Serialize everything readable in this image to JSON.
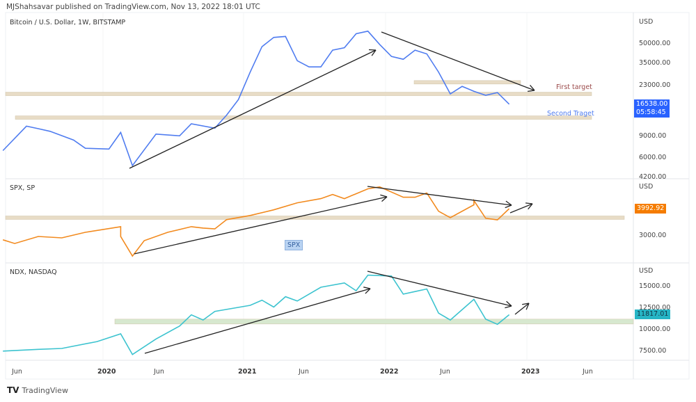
{
  "header": "MJShahsavar published on TradingView.com, Nov 13, 2022 18:01 UTC",
  "footer": "TradingView",
  "colors": {
    "btc": "#4f7cf0",
    "spx": "#f28a1e",
    "ndx": "#3cc3cf",
    "zone": "#e8dcc6",
    "zone_green": "#d7e8cf"
  },
  "chart_data": [
    {
      "type": "line",
      "title": "Bitcoin / U.S. Dollar, 1W, BITSTAMP",
      "unit": "USD",
      "scale": "log",
      "yticks": [
        50000,
        35000,
        23000,
        9000,
        6000,
        4200
      ],
      "last_value": "16538.00",
      "countdown": "05:58:45",
      "annotations": [
        {
          "text": "First target",
          "color": "#9b4a4a"
        },
        {
          "text": "Second Traget",
          "color": "#4f7cf0"
        }
      ],
      "zones": [
        20000,
        12900,
        24800
      ],
      "series": [
        [
          "2019-04",
          7000
        ],
        [
          "2019-06",
          11000
        ],
        [
          "2019-07",
          10500
        ],
        [
          "2019-08",
          10000
        ],
        [
          "2019-10",
          8500
        ],
        [
          "2019-11",
          7300
        ],
        [
          "2020-01",
          7200
        ],
        [
          "2020-02",
          9800
        ],
        [
          "2020-03",
          5300
        ],
        [
          "2020-05",
          9500
        ],
        [
          "2020-07",
          9200
        ],
        [
          "2020-08",
          11500
        ],
        [
          "2020-10",
          10600
        ],
        [
          "2020-11",
          13500
        ],
        [
          "2020-12",
          18000
        ],
        [
          "2021-01",
          30000
        ],
        [
          "2021-02",
          48000
        ],
        [
          "2021-03",
          57000
        ],
        [
          "2021-04",
          58000
        ],
        [
          "2021-05",
          37000
        ],
        [
          "2021-06",
          33000
        ],
        [
          "2021-07",
          33000
        ],
        [
          "2021-08",
          45000
        ],
        [
          "2021-09",
          47000
        ],
        [
          "2021-10",
          61000
        ],
        [
          "2021-11",
          64000
        ],
        [
          "2021-12",
          50000
        ],
        [
          "2022-01",
          40000
        ],
        [
          "2022-02",
          38000
        ],
        [
          "2022-03",
          45000
        ],
        [
          "2022-04",
          42000
        ],
        [
          "2022-05",
          30000
        ],
        [
          "2022-06",
          20000
        ],
        [
          "2022-07",
          23000
        ],
        [
          "2022-08",
          21000
        ],
        [
          "2022-09",
          19500
        ],
        [
          "2022-10",
          20500
        ],
        [
          "2022-11",
          16538
        ]
      ]
    },
    {
      "type": "line",
      "title": "SPX, SP",
      "unit": "USD",
      "scale": "linear",
      "yticks": [
        3000
      ],
      "last_value": "3992.92",
      "badge": "SPX",
      "zones": [
        3670
      ],
      "series": [
        [
          "2019-04",
          2880
        ],
        [
          "2019-05",
          2750
        ],
        [
          "2019-07",
          3000
        ],
        [
          "2019-09",
          2950
        ],
        [
          "2019-11",
          3150
        ],
        [
          "2020-02",
          3350
        ],
        [
          "2020-02",
          3000
        ],
        [
          "2020-03",
          2300
        ],
        [
          "2020-04",
          2850
        ],
        [
          "2020-06",
          3150
        ],
        [
          "2020-08",
          3350
        ],
        [
          "2020-09",
          3300
        ],
        [
          "2020-10",
          3270
        ],
        [
          "2020-11",
          3600
        ],
        [
          "2021-01",
          3750
        ],
        [
          "2021-03",
          3950
        ],
        [
          "2021-05",
          4200
        ],
        [
          "2021-07",
          4350
        ],
        [
          "2021-08",
          4500
        ],
        [
          "2021-09",
          4350
        ],
        [
          "2021-11",
          4700
        ],
        [
          "2021-12",
          4770
        ],
        [
          "2022-02",
          4400
        ],
        [
          "2022-03",
          4400
        ],
        [
          "2022-04",
          4550
        ],
        [
          "2022-05",
          3900
        ],
        [
          "2022-06",
          3670
        ],
        [
          "2022-08",
          4130
        ],
        [
          "2022-08",
          4280
        ],
        [
          "2022-09",
          3650
        ],
        [
          "2022-10",
          3590
        ],
        [
          "2022-11",
          3993
        ]
      ]
    },
    {
      "type": "line",
      "title": "NDX, NASDAQ",
      "unit": "USD",
      "scale": "linear",
      "yticks": [
        15000,
        12500,
        10000,
        7500
      ],
      "last_value": "11817.01",
      "zones": [
        11100
      ],
      "series": [
        [
          "2019-04",
          7600
        ],
        [
          "2019-07",
          7800
        ],
        [
          "2019-09",
          7900
        ],
        [
          "2019-12",
          8700
        ],
        [
          "2020-02",
          9600
        ],
        [
          "2020-03",
          7200
        ],
        [
          "2020-05",
          9000
        ],
        [
          "2020-07",
          10500
        ],
        [
          "2020-08",
          11800
        ],
        [
          "2020-09",
          11200
        ],
        [
          "2020-10",
          12200
        ],
        [
          "2021-01",
          12900
        ],
        [
          "2021-02",
          13500
        ],
        [
          "2021-03",
          12700
        ],
        [
          "2021-04",
          13900
        ],
        [
          "2021-05",
          13400
        ],
        [
          "2021-07",
          15000
        ],
        [
          "2021-09",
          15500
        ],
        [
          "2021-10",
          14600
        ],
        [
          "2021-11",
          16400
        ],
        [
          "2022-01",
          16300
        ],
        [
          "2022-02",
          14200
        ],
        [
          "2022-03",
          14500
        ],
        [
          "2022-04",
          14800
        ],
        [
          "2022-05",
          12000
        ],
        [
          "2022-06",
          11200
        ],
        [
          "2022-08",
          13600
        ],
        [
          "2022-09",
          11300
        ],
        [
          "2022-10",
          10700
        ],
        [
          "2022-11",
          11817
        ]
      ]
    }
  ],
  "time_axis": [
    {
      "label": "Jun",
      "year": false
    },
    {
      "label": "2020",
      "year": true
    },
    {
      "label": "Jun",
      "year": false
    },
    {
      "label": "2021",
      "year": true
    },
    {
      "label": "Jun",
      "year": false
    },
    {
      "label": "2022",
      "year": true
    },
    {
      "label": "Jun",
      "year": false
    },
    {
      "label": "2023",
      "year": true
    },
    {
      "label": "Jun",
      "year": false
    }
  ]
}
